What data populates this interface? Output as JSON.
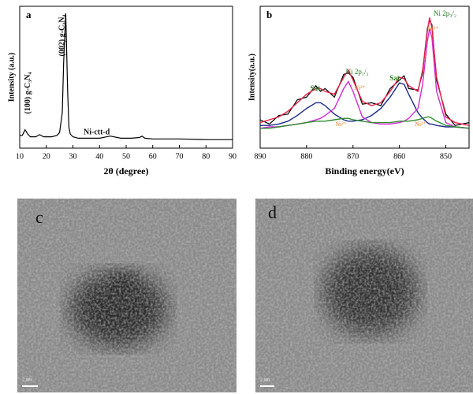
{
  "chart_data": [
    {
      "type": "line",
      "panel": "a",
      "xlabel": "2θ (degree)",
      "ylabel": "Intensity (a.u.)",
      "xlim": [
        10,
        90
      ],
      "xticks": [
        10,
        20,
        30,
        40,
        50,
        60,
        70,
        80,
        90
      ],
      "ylim": [
        0,
        100
      ],
      "x": [
        10,
        11,
        12,
        13,
        14,
        16,
        17.5,
        19,
        22,
        24,
        25,
        26,
        26.5,
        27.3,
        28,
        28.5,
        29,
        30,
        32,
        35,
        40,
        44,
        48,
        52,
        55,
        56,
        57,
        60,
        70,
        80,
        90
      ],
      "series": [
        {
          "color": "#000000",
          "values": [
            9,
            9,
            13,
            10,
            8,
            8,
            9.5,
            8,
            8,
            9,
            11,
            25,
            60,
            95,
            40,
            15,
            10,
            8,
            7,
            7,
            7,
            8.5,
            7,
            7,
            7.5,
            8.5,
            7,
            6.5,
            6.5,
            6,
            6
          ]
        }
      ],
      "annotations": [
        "(100) g-C₃N₄",
        "(002) g-C₃N₄",
        "Ni-ctt-d"
      ]
    },
    {
      "type": "line",
      "panel": "b",
      "xlabel": "Binding energy(eV)",
      "ylabel": "Intensity(a.u.)",
      "xlim": [
        890,
        845
      ],
      "xticks": [
        890,
        880,
        870,
        860,
        850
      ],
      "ylim": [
        0,
        100
      ],
      "x": [
        890,
        888,
        886,
        884,
        882,
        880,
        878,
        877,
        876,
        874,
        872,
        871,
        870,
        868,
        866,
        864,
        862,
        860,
        859,
        858,
        856,
        855,
        854,
        853.5,
        853,
        852,
        850,
        848,
        845
      ],
      "series": [
        {
          "color": "#000000",
          "values": [
            20,
            17,
            23,
            24,
            34,
            36,
            44,
            40,
            42,
            36,
            52,
            53,
            50,
            31,
            32,
            30,
            42,
            48,
            51,
            42,
            41,
            53,
            84,
            90,
            87,
            48,
            24,
            16,
            18
          ]
        },
        {
          "color": "#1b2a8a",
          "values": [
            16,
            16,
            17,
            19,
            23,
            28,
            32,
            32,
            30,
            24,
            20,
            19,
            19,
            20,
            23,
            28,
            36,
            46,
            45,
            38,
            25,
            21,
            18,
            17,
            17,
            16,
            15,
            15,
            14
          ]
        },
        {
          "color": "#d42bd4",
          "values": [
            14,
            15,
            15,
            16,
            17,
            18,
            20,
            21,
            23,
            28,
            42,
            47,
            40,
            22,
            18,
            17,
            17,
            18,
            19,
            21,
            28,
            45,
            75,
            84,
            78,
            40,
            18,
            15,
            14
          ]
        },
        {
          "color": "#2e8b2e",
          "values": [
            14,
            14,
            15,
            16,
            17,
            18,
            19,
            19,
            19,
            20,
            21,
            21,
            20,
            19,
            18,
            18,
            18,
            19,
            19,
            19,
            20,
            21,
            22,
            22,
            21,
            19,
            16,
            15,
            14
          ]
        },
        {
          "color": "#e8204a",
          "values": [
            18,
            20,
            22,
            26,
            32,
            38,
            42,
            42,
            40,
            38,
            50,
            55,
            48,
            33,
            30,
            32,
            40,
            50,
            49,
            44,
            40,
            55,
            82,
            92,
            85,
            50,
            22,
            18,
            16
          ]
        }
      ],
      "annotations": [
        "Sat.",
        "Ni 2p₁/₂",
        "Ni²⁺",
        "Sat.",
        "Ni 2p₃/₂",
        "Ni²⁺",
        "Ni²⁺",
        "Ni²⁺"
      ]
    }
  ],
  "images": [
    {
      "label": "c",
      "scale_bar": "2 nm"
    },
    {
      "label": "d",
      "scale_bar": "2 nm"
    }
  ]
}
